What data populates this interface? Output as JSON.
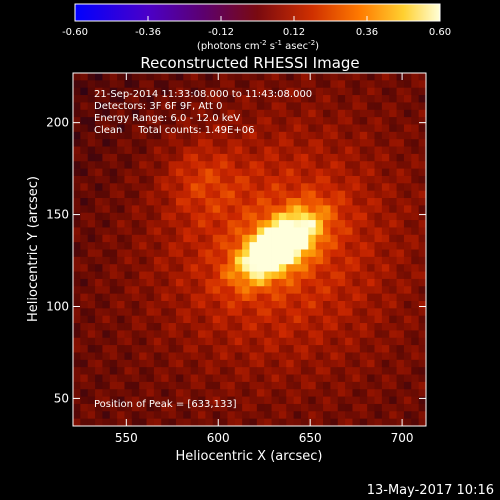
{
  "chart_data": {
    "type": "heatmap",
    "title": "Reconstructed RHESSI Image",
    "xlabel": "Heliocentric X (arcsec)",
    "ylabel": "Heliocentric Y (arcsec)",
    "xlim": [
      521,
      713
    ],
    "ylim": [
      35,
      227
    ],
    "x_ticks": [
      550,
      600,
      650,
      700
    ],
    "y_ticks": [
      50,
      100,
      150,
      200
    ],
    "colorbar": {
      "range": [
        -0.6,
        0.6
      ],
      "ticks": [
        "-0.60",
        "-0.36",
        "-0.12",
        "0.12",
        "0.36",
        "0.60"
      ],
      "unit_prefix": "(photons cm",
      "unit_sup1": "-2",
      "unit_mid1": " s",
      "unit_sup2": "-1",
      "unit_mid2": " asec",
      "unit_sup3": "-2",
      "unit_suffix": ")"
    },
    "annotations": {
      "time_range": "21-Sep-2014 11:33:08.000 to 11:43:08.000",
      "detectors": "Detectors: 3F 6F 9F, Att 0",
      "energy_range": "Energy Range: 6.0 - 12.0 keV",
      "method_counts": "Clean     Total counts: 1.49E+06",
      "peak": "Position of Peak = [633,133]"
    },
    "peak": [
      633,
      133
    ],
    "max_intensity": 0.6,
    "background_intensity": 0.22
  },
  "footer": {
    "date": "13-May-2017 10:16"
  }
}
